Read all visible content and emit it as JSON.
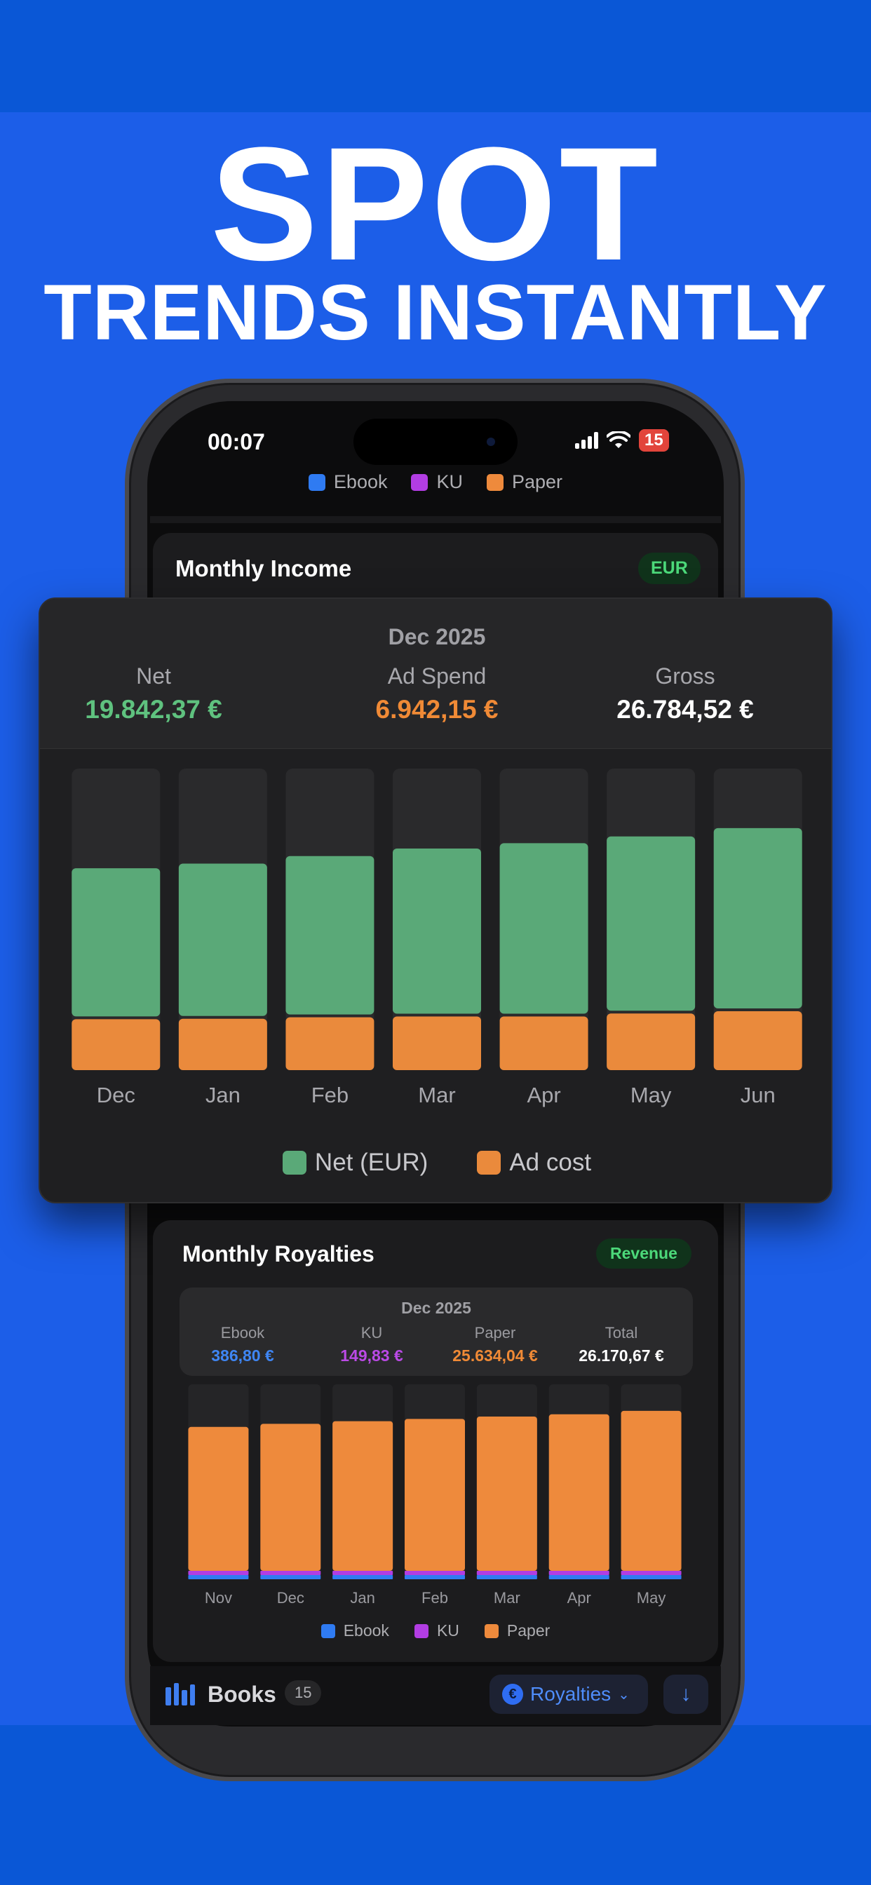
{
  "headline": {
    "line1": "SPOT",
    "line2": "TRENDS INSTANTLY"
  },
  "status_bar": {
    "time": "00:07",
    "battery": "15"
  },
  "top_legend": [
    {
      "label": "Ebook",
      "color": "#2f7bf2"
    },
    {
      "label": "KU",
      "color": "#b23de3"
    },
    {
      "label": "Paper",
      "color": "#ee8a3c"
    }
  ],
  "income_card": {
    "title": "Monthly Income",
    "badge": "EUR"
  },
  "popup": {
    "date": "Dec 2025",
    "net_label": "Net",
    "net_value": "19.842,37 €",
    "ad_label": "Ad Spend",
    "ad_value": "6.942,15 €",
    "gross_label": "Gross",
    "gross_value": "26.784,52 €",
    "legend_net": "Net (EUR)",
    "legend_ad": "Ad cost"
  },
  "colors": {
    "net": "#5aa978",
    "ad": "#ea8a3c",
    "ebook": "#2f7bf2",
    "ku": "#b23de3",
    "paper": "#ee8a3c",
    "net_text": "#5fc27f",
    "ad_text": "#f08a36"
  },
  "royalties_card": {
    "title": "Monthly Royalties",
    "badge": "Revenue",
    "date": "Dec 2025",
    "stats": [
      {
        "label": "Ebook",
        "value": "386,80 €",
        "color": "#3f86f4"
      },
      {
        "label": "KU",
        "value": "149,83 €",
        "color": "#bb4ae6"
      },
      {
        "label": "Paper",
        "value": "25.634,04 €",
        "color": "#f08a36"
      },
      {
        "label": "Total",
        "value": "26.170,67 €",
        "color": "#ffffff"
      }
    ]
  },
  "bottom_bar": {
    "books_label": "Books",
    "books_count": "15",
    "royalties_button": "Royalties"
  },
  "chart_data": [
    {
      "type": "bar",
      "title": "Monthly Income",
      "categories": [
        "Dec",
        "Jan",
        "Feb",
        "Mar",
        "Apr",
        "May",
        "Jun"
      ],
      "stacked": true,
      "series": [
        {
          "name": "Ad cost",
          "values": [
            6942,
            7000,
            7200,
            7300,
            7300,
            7700,
            8000
          ]
        },
        {
          "name": "Net (EUR)",
          "values": [
            19842,
            20400,
            21200,
            22100,
            22800,
            23300,
            24100
          ]
        }
      ],
      "ylim": [
        0,
        40000
      ],
      "legend": "bottom"
    },
    {
      "type": "bar",
      "title": "Monthly Royalties",
      "categories": [
        "Nov",
        "Dec",
        "Jan",
        "Feb",
        "Mar",
        "Apr",
        "May"
      ],
      "stacked": true,
      "series": [
        {
          "name": "Ebook",
          "values": [
            380,
            387,
            390,
            395,
            400,
            405,
            410
          ]
        },
        {
          "name": "KU",
          "values": [
            145,
            150,
            150,
            152,
            155,
            158,
            160
          ]
        },
        {
          "name": "Paper",
          "values": [
            25100,
            25634,
            26100,
            26500,
            26900,
            27300,
            27900
          ]
        }
      ],
      "ylim": [
        0,
        34000
      ],
      "legend": "bottom"
    }
  ]
}
